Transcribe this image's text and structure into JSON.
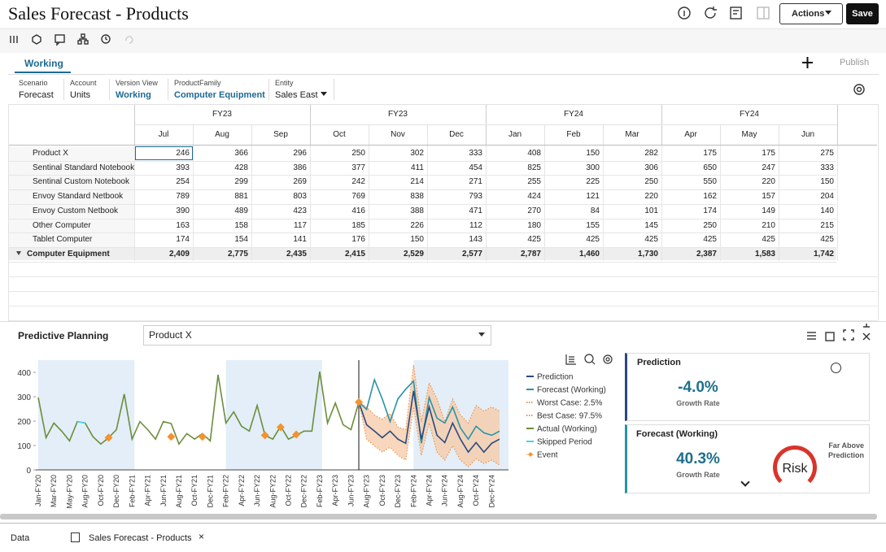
{
  "header": {
    "title": "Sales Forecast - Products",
    "actions": "Actions",
    "save": "Save"
  },
  "tabs": {
    "active": "Working",
    "publish": "Publish"
  },
  "pov": [
    {
      "label": "Scenario",
      "value": "Forecast"
    },
    {
      "label": "Account",
      "value": "Units"
    },
    {
      "label": "Version View",
      "value": "Working"
    },
    {
      "label": "ProductFamily",
      "value": "Computer Equipment"
    },
    {
      "label": "Entity",
      "value": "Sales East"
    }
  ],
  "grid": {
    "years": [
      "FY23",
      "FY23",
      "FY24",
      "FY24"
    ],
    "months": [
      "Jul",
      "Aug",
      "Sep",
      "Oct",
      "Nov",
      "Dec",
      "Jan",
      "Feb",
      "Mar",
      "Apr",
      "May",
      "Jun"
    ],
    "rows": [
      {
        "label": "Product X",
        "values": [
          246,
          366,
          296,
          250,
          302,
          333,
          408,
          150,
          282,
          175,
          175,
          275
        ]
      },
      {
        "label": "Sentinal Standard Notebook",
        "values": [
          393,
          428,
          386,
          377,
          411,
          454,
          825,
          300,
          306,
          650,
          247,
          333
        ]
      },
      {
        "label": "Sentinal Custom Notebook",
        "values": [
          254,
          299,
          269,
          242,
          214,
          271,
          255,
          225,
          250,
          550,
          220,
          150
        ]
      },
      {
        "label": "Envoy Standard Netbook",
        "values": [
          789,
          881,
          803,
          769,
          838,
          793,
          424,
          121,
          220,
          162,
          157,
          204
        ]
      },
      {
        "label": "Envoy Custom Netbook",
        "values": [
          390,
          489,
          423,
          416,
          388,
          471,
          270,
          84,
          101,
          174,
          149,
          140
        ]
      },
      {
        "label": "Other Computer",
        "values": [
          163,
          158,
          117,
          185,
          226,
          112,
          180,
          155,
          145,
          250,
          210,
          215
        ]
      },
      {
        "label": "Tablet Computer",
        "values": [
          174,
          154,
          141,
          176,
          150,
          143,
          425,
          425,
          425,
          425,
          425,
          425
        ]
      },
      {
        "label": "Computer Equipment",
        "values": [
          "2,409",
          "2,775",
          "2,435",
          "2,415",
          "2,529",
          "2,577",
          "2,787",
          "1,460",
          "1,730",
          "2,387",
          "1,583",
          "1,742"
        ]
      }
    ]
  },
  "predictive": {
    "title": "Predictive Planning",
    "member": "Product X",
    "prediction_card": {
      "title": "Prediction",
      "value": "-4.0%",
      "caption": "Growth Rate"
    },
    "forecast_card": {
      "title": "Forecast (Working)",
      "value": "40.3%",
      "caption": "Growth Rate",
      "status": "Far Above Prediction",
      "gauge": "Risk"
    }
  },
  "chart_data": {
    "type": "line",
    "categories": [
      "Jan-FY20",
      null,
      "Mar-FY20",
      null,
      "May-FY20",
      null,
      "Aug-FY20",
      null,
      "Oct-FY20",
      null,
      "Dec-FY20",
      null,
      "Feb-FY21",
      null,
      "Apr-FY21",
      null,
      "Jun-FY21",
      null,
      "Aug-FY21",
      null,
      "Oct-FY21",
      null,
      "Dec-FY21",
      null,
      "Feb-FY22",
      null,
      "Apr-FY22",
      null,
      "Jun-FY22",
      null,
      "Aug-FY22",
      null,
      "Oct-FY22",
      null,
      "Dec-FY22",
      null,
      "Feb-FY23",
      null,
      "Apr-FY23",
      null,
      "Jun-FY23",
      null,
      "Aug-FY23",
      null,
      "Oct-FY23",
      null,
      "Dec-FY23",
      null,
      "Feb-FY24",
      null,
      "Apr-FY24",
      null,
      "Jun-FY24",
      null,
      "Aug-FY24",
      null,
      "Oct-FY24",
      null,
      "Dec-FY24",
      null
    ],
    "ylim": [
      0,
      450
    ],
    "yticks": [
      0,
      100,
      200,
      300,
      400
    ],
    "legend": "right",
    "series": [
      {
        "name": "Prediction",
        "color": "#2b4a7e",
        "style": "solid",
        "values": [
          null,
          null,
          null,
          null,
          null,
          null,
          null,
          null,
          null,
          null,
          null,
          null,
          null,
          null,
          null,
          null,
          null,
          null,
          null,
          null,
          null,
          null,
          null,
          null,
          null,
          null,
          null,
          null,
          null,
          null,
          null,
          null,
          null,
          null,
          null,
          null,
          null,
          null,
          null,
          null,
          null,
          278,
          185,
          159,
          132,
          159,
          126,
          109,
          324,
          126,
          258,
          142,
          112,
          192,
          126,
          73,
          112,
          73,
          109,
          126
        ]
      },
      {
        "name": "Forecast (Working)",
        "color": "#2a93a6",
        "style": "solid",
        "values": [
          null,
          null,
          null,
          null,
          null,
          null,
          null,
          null,
          null,
          null,
          null,
          null,
          null,
          null,
          null,
          null,
          null,
          null,
          null,
          null,
          null,
          null,
          null,
          null,
          null,
          null,
          null,
          null,
          null,
          null,
          null,
          null,
          null,
          null,
          null,
          null,
          null,
          null,
          null,
          null,
          null,
          278,
          248,
          370,
          291,
          198,
          291,
          331,
          364,
          109,
          297,
          212,
          192,
          258,
          172,
          126,
          179,
          152,
          142,
          159
        ]
      },
      {
        "name": "Worst Case: 2.5%",
        "color": "#f0944a",
        "style": "dotted",
        "values": [
          null,
          null,
          null,
          null,
          null,
          null,
          null,
          null,
          null,
          null,
          null,
          null,
          null,
          null,
          null,
          null,
          null,
          null,
          null,
          null,
          null,
          null,
          null,
          null,
          null,
          null,
          null,
          null,
          null,
          null,
          null,
          null,
          null,
          null,
          null,
          null,
          null,
          null,
          null,
          null,
          null,
          278,
          126,
          99,
          73,
          93,
          60,
          40,
          258,
          60,
          192,
          73,
          40,
          99,
          40,
          13,
          46,
          26,
          40,
          20
        ]
      },
      {
        "name": "Best Case: 97.5%",
        "color": "#f0944a",
        "style": "dotted",
        "values": [
          null,
          null,
          null,
          null,
          null,
          null,
          null,
          null,
          null,
          null,
          null,
          null,
          null,
          null,
          null,
          null,
          null,
          null,
          null,
          null,
          null,
          null,
          null,
          null,
          null,
          null,
          null,
          null,
          null,
          null,
          null,
          null,
          null,
          null,
          null,
          null,
          null,
          null,
          null,
          null,
          null,
          278,
          258,
          225,
          208,
          231,
          175,
          165,
          430,
          198,
          357,
          291,
          198,
          291,
          225,
          192,
          264,
          241,
          258,
          241
        ]
      },
      {
        "name": "Actual (Working)",
        "color": "#6b8e3a",
        "style": "solid",
        "values": [
          297,
          132,
          192,
          159,
          119,
          198,
          192,
          136,
          106,
          132,
          165,
          311,
          126,
          198,
          165,
          126,
          198,
          190,
          106,
          149,
          126,
          149,
          119,
          390,
          192,
          238,
          179,
          159,
          264,
          142,
          126,
          179,
          126,
          142,
          159,
          159,
          403,
          192,
          274,
          185,
          165,
          278,
          null,
          null,
          null,
          null,
          null,
          null,
          null,
          null,
          null,
          null,
          null,
          null,
          null,
          null,
          null,
          null,
          null,
          null
        ]
      },
      {
        "name": "Skipped Period",
        "color": "#3fd6e8",
        "style": "solid",
        "values": [
          null,
          null,
          null,
          null,
          null,
          198,
          192,
          null,
          null,
          null,
          null,
          null,
          null,
          null,
          null,
          null,
          null,
          null,
          null,
          null,
          null,
          null,
          null,
          null,
          null,
          null,
          null,
          null,
          null,
          null,
          null,
          null,
          null,
          null,
          null,
          null,
          null,
          null,
          null,
          null,
          null,
          null,
          null,
          null,
          null,
          null,
          null,
          null,
          null,
          null,
          null,
          null,
          null,
          null,
          null,
          null,
          null,
          null,
          null,
          null
        ]
      },
      {
        "name": "Event",
        "color": "#f5922f",
        "style": "marker",
        "values": [
          null,
          null,
          null,
          null,
          null,
          null,
          null,
          null,
          null,
          132,
          null,
          null,
          null,
          null,
          null,
          null,
          null,
          136,
          null,
          null,
          null,
          136,
          null,
          null,
          null,
          null,
          null,
          null,
          null,
          142,
          null,
          175,
          null,
          145,
          null,
          null,
          null,
          null,
          null,
          null,
          null,
          278,
          null,
          null,
          null,
          null,
          null,
          null,
          null,
          null,
          null,
          null,
          null,
          null,
          null,
          null,
          null,
          null,
          null,
          null
        ]
      }
    ]
  },
  "footer": {
    "tabs": [
      "Data",
      "Sales Forecast - Products"
    ]
  }
}
